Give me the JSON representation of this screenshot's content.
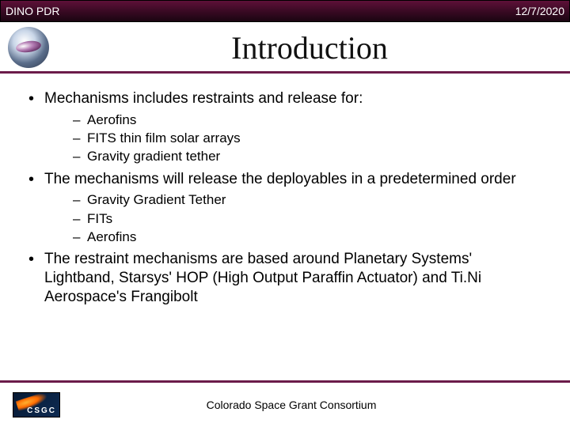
{
  "header": {
    "left": "DINO PDR",
    "right": "12/7/2020"
  },
  "title": "Introduction",
  "colors": {
    "accent": "#6b1b4a",
    "header_gradient_top": "#5e1038",
    "header_gradient_mid": "#3a0a24",
    "header_gradient_bot": "#1a0511",
    "text": "#000000",
    "bg": "#ffffff"
  },
  "typography": {
    "title_font": "Times New Roman",
    "body_font": "Arial",
    "title_size_pt": 30,
    "body_size_pt": 14,
    "sub_size_pt": 13
  },
  "bullets": [
    {
      "text": "Mechanisms includes restraints and release for:",
      "sub": [
        "Aerofins",
        "FITS thin film solar arrays",
        "Gravity gradient tether"
      ]
    },
    {
      "text": "The mechanisms will release the deployables in a predetermined order",
      "sub": [
        "Gravity Gradient Tether",
        "FITs",
        "Aerofins"
      ]
    },
    {
      "text": "The restraint mechanisms are based around Planetary Systems' Lightband, Starsys' HOP (High Output Paraffin Actuator) and Ti.Ni Aerospace's Frangibolt",
      "sub": []
    }
  ],
  "footer": {
    "org": "Colorado Space Grant Consortium",
    "logo_label": "CSGC"
  }
}
